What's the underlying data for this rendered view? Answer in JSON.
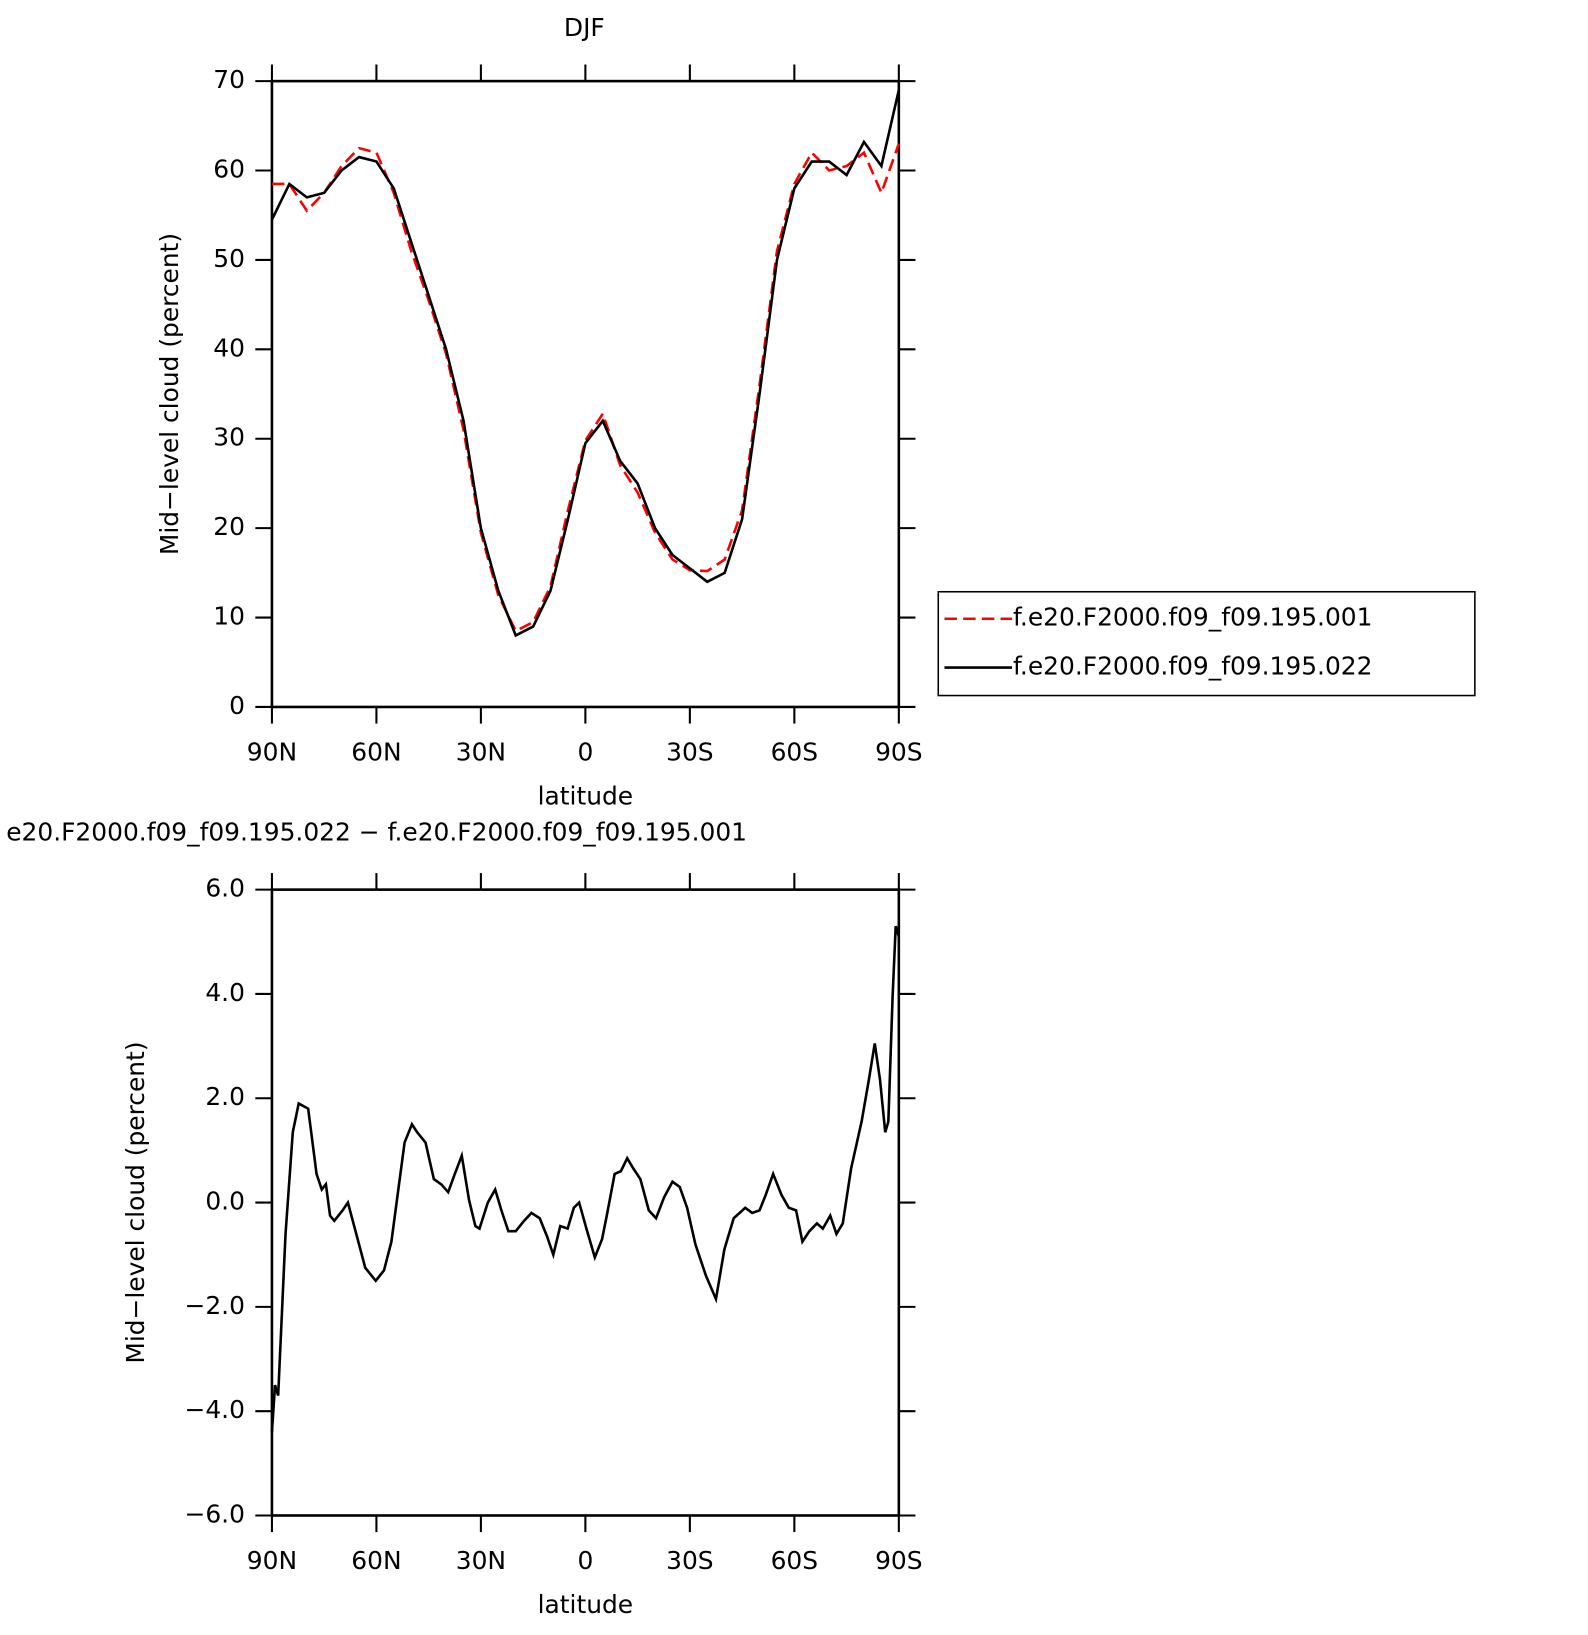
{
  "chart_data": [
    {
      "type": "line",
      "title": "DJF",
      "xlabel": "latitude",
      "ylabel": "Mid−level cloud (percent)",
      "x": [
        90,
        85,
        80,
        75,
        70,
        65,
        60,
        55,
        50,
        45,
        40,
        35,
        30,
        25,
        20,
        15,
        10,
        5,
        0,
        -5,
        -10,
        -15,
        -20,
        -25,
        -30,
        -35,
        -40,
        -45,
        -50,
        -55,
        -60,
        -65,
        -70,
        -75,
        -80,
        -85,
        -90
      ],
      "series": [
        {
          "name": "f.e20.F2000.f09_f09.195.001",
          "color": "#ff0000",
          "dash": true,
          "values": [
            58.5,
            58.5,
            55.5,
            57.5,
            60.5,
            62.5,
            62.0,
            57.5,
            51,
            45.5,
            39.5,
            31,
            19.5,
            12.5,
            8.5,
            9.5,
            13.5,
            22,
            29.8,
            32.8,
            27,
            24,
            19.5,
            16.5,
            15.3,
            15.2,
            16.5,
            22,
            36,
            51,
            58.5,
            62,
            60,
            60.5,
            62,
            57.5,
            63
          ]
        },
        {
          "name": "f.e20.F2000.f09_f09.195.022",
          "color": "#000000",
          "dash": false,
          "values": [
            54.5,
            58.5,
            57.0,
            57.5,
            60.0,
            61.5,
            61.0,
            58.0,
            52,
            46,
            40,
            32,
            20,
            13,
            8,
            9,
            13,
            21,
            29.5,
            32,
            27.5,
            25,
            20,
            17,
            15.5,
            14,
            15,
            21,
            35,
            50,
            58,
            61,
            61,
            59.5,
            63.2,
            60.5,
            69
          ]
        }
      ],
      "xlim": [
        90,
        -90
      ],
      "xticks": [
        {
          "value": 90,
          "label": "90N"
        },
        {
          "value": 60,
          "label": "60N"
        },
        {
          "value": 30,
          "label": "30N"
        },
        0,
        {
          "value": -30,
          "label": "30S"
        },
        {
          "value": -60,
          "label": "60S"
        },
        {
          "value": -90,
          "label": "90S"
        }
      ],
      "ylim": [
        0,
        70
      ],
      "yticks": [
        0,
        10,
        20,
        30,
        40,
        50,
        60,
        70
      ],
      "legend": "right"
    },
    {
      "type": "line",
      "title": "e20.F2000.f09_f09.195.022 − f.e20.F2000.f09_f09.195.001",
      "xlabel": "latitude",
      "ylabel": "Mid−level cloud (percent)",
      "x": [
        90,
        89.1,
        88.2,
        86.1,
        84.0,
        82.3,
        79.6,
        77.2,
        75.7,
        74.5,
        73.3,
        72.1,
        69.7,
        68.2,
        66.2,
        63.2,
        60.2,
        57.8,
        55.7,
        51.9,
        49.8,
        48.3,
        45.9,
        43.5,
        41.4,
        39.4,
        37.5,
        35.5,
        33.4,
        31.6,
        30.4,
        28.0,
        25.9,
        24.1,
        22.1,
        20.0,
        17.6,
        15.5,
        13.1,
        11.0,
        9.2,
        7.2,
        5.1,
        3.3,
        1.8,
        -0.3,
        -2.7,
        -4.8,
        -6.3,
        -8.4,
        -10.2,
        -12.0,
        -13.8,
        -15.8,
        -18.2,
        -20.3,
        -22.6,
        -25.0,
        -27.1,
        -29.2,
        -31.6,
        -34.6,
        -37.5,
        -39.9,
        -42.6,
        -45.9,
        -47.9,
        -50.0,
        -51.8,
        -53.9,
        -56.3,
        -58.4,
        -60.5,
        -62.3,
        -64.3,
        -66.5,
        -68.2,
        -70.3,
        -72.1,
        -73.9,
        -76.3,
        -79.3,
        -81.4,
        -83.1,
        -84.6,
        -86.1,
        -87.0,
        -88.2,
        -89.1,
        -90
      ],
      "series": [
        {
          "color": "#000000",
          "dash": false,
          "values": [
            -4.4,
            -3.5,
            -3.7,
            -0.6,
            1.35,
            1.9,
            1.8,
            0.55,
            0.25,
            0.35,
            -0.25,
            -0.35,
            -0.15,
            0.0,
            -0.5,
            -1.25,
            -1.5,
            -1.3,
            -0.75,
            1.15,
            1.5,
            1.35,
            1.15,
            0.45,
            0.35,
            0.2,
            0.55,
            0.9,
            0.05,
            -0.45,
            -0.5,
            0,
            0.25,
            -0.15,
            -0.55,
            -0.55,
            -0.35,
            -0.2,
            -0.3,
            -0.65,
            -1.0,
            -0.45,
            -0.5,
            -0.1,
            0,
            -0.5,
            -1.05,
            -0.7,
            -0.2,
            0.55,
            0.6,
            0.85,
            0.65,
            0.45,
            -0.15,
            -0.3,
            0.1,
            0.4,
            0.3,
            -0.1,
            -0.8,
            -1.4,
            -1.85,
            -0.9,
            -0.3,
            -0.1,
            -0.2,
            -0.15,
            0.15,
            0.55,
            0.15,
            -0.1,
            -0.15,
            -0.75,
            -0.55,
            -0.4,
            -0.5,
            -0.25,
            -0.6,
            -0.4,
            0.65,
            1.55,
            2.35,
            3.05,
            2.35,
            1.35,
            1.55,
            3.95,
            5.3,
            5.1
          ]
        }
      ],
      "xlim": [
        90,
        -90
      ],
      "xticks": [
        {
          "value": 90,
          "label": "90N"
        },
        {
          "value": 60,
          "label": "60N"
        },
        {
          "value": 30,
          "label": "30N"
        },
        0,
        {
          "value": -30,
          "label": "30S"
        },
        {
          "value": -60,
          "label": "60S"
        },
        {
          "value": -90,
          "label": "90S"
        }
      ],
      "ylim": [
        -6,
        6
      ],
      "yticks": [
        {
          "value": -6,
          "label": "−6.0"
        },
        {
          "value": -4,
          "label": "−4.0"
        },
        {
          "value": -2,
          "label": "−2.0"
        },
        {
          "value": 0,
          "label": "0.0"
        },
        {
          "value": 2,
          "label": "2.0"
        },
        {
          "value": 4,
          "label": "4.0"
        },
        {
          "value": 6,
          "label": "6.0"
        }
      ]
    }
  ]
}
